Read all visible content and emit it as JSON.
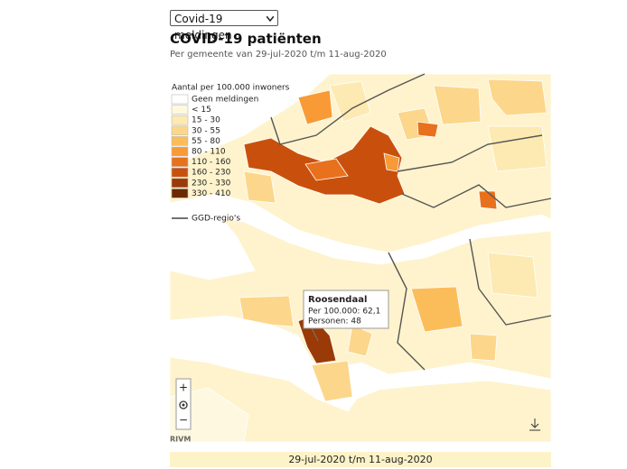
{
  "dropdown": {
    "selected": "Covid-19 meldingen"
  },
  "header": {
    "title": "COVID-19 patiënten",
    "subtitle": "Per gemeente van 29-jul-2020 t/m 11-aug-2020"
  },
  "legend": {
    "title": "Aantal per 100.000 inwoners",
    "items": [
      {
        "label": "Geen meldingen",
        "color": "#ffffff"
      },
      {
        "label": "< 15",
        "color": "#fff8dc"
      },
      {
        "label": "15 - 30",
        "color": "#fdeab2"
      },
      {
        "label": "30 - 55",
        "color": "#fcd68a"
      },
      {
        "label": "55 - 80",
        "color": "#fbbd5a"
      },
      {
        "label": "80 - 110",
        "color": "#f89a35"
      },
      {
        "label": "110 - 160",
        "color": "#e8711d"
      },
      {
        "label": "160 - 230",
        "color": "#c9500c"
      },
      {
        "label": "230 - 330",
        "color": "#9a3a06"
      },
      {
        "label": "330 - 410",
        "color": "#6b2a02"
      }
    ],
    "regions_label": "GGD-regio's"
  },
  "tooltip": {
    "title": "Roosendaal",
    "lines": [
      "Per 100.000: 62,1",
      "Personen: 48"
    ]
  },
  "controls": {
    "zoom_in": "+",
    "zoom_out": "−"
  },
  "attribution": "RIVM",
  "footer": "29-jul-2020 t/m 11-aug-2020"
}
